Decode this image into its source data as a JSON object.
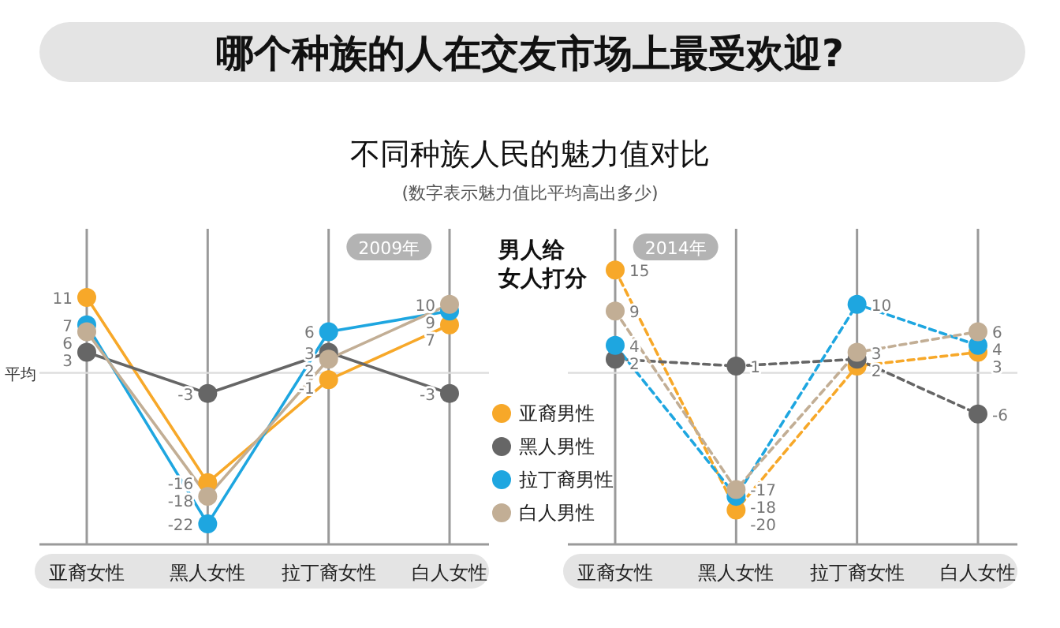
{
  "chart_data": [
    {
      "type": "other",
      "title": "哪个种族的人在交友市场上最受欢迎?",
      "subtitle": "不同种族人民的魅力值对比",
      "annotations": [
        "(数字表示魅力值比平均高出多少)"
      ]
    },
    {
      "type": "line",
      "title": "2009年",
      "categories": [
        "亚裔女性",
        "黑人女性",
        "拉丁裔女性",
        "白人女性"
      ],
      "ylim": [
        -25,
        21
      ],
      "grid": "x",
      "marker": "circle",
      "line_style": "solid",
      "legend": "right",
      "legend_title": "男人给女人打分",
      "ref_lines": [
        {
          "axis": "y",
          "value": 0,
          "label": "平均"
        }
      ],
      "series": [
        {
          "name": "亚裔男性",
          "color": "#f7a829",
          "values": [
            11,
            -16,
            -1,
            7
          ],
          "value_labels": [
            "11",
            "-16",
            "-1",
            "7"
          ]
        },
        {
          "name": "黑人男性",
          "color": "#666666",
          "values": [
            3,
            -3,
            3,
            -3
          ],
          "value_labels": [
            "3",
            "-3",
            "3",
            "-3"
          ]
        },
        {
          "name": "拉丁裔男性",
          "color": "#1ea6e0",
          "values": [
            7,
            -22,
            6,
            9
          ],
          "value_labels": [
            "7",
            "-22",
            "6",
            "9"
          ]
        },
        {
          "name": "白人男性",
          "color": "#c2ae95",
          "values": [
            6,
            -18,
            2,
            10
          ],
          "value_labels": [
            "6",
            "-18",
            "2",
            "10"
          ]
        }
      ]
    },
    {
      "type": "line",
      "title": "2014年",
      "categories": [
        "亚裔女性",
        "黑人女性",
        "拉丁裔女性",
        "白人女性"
      ],
      "ylim": [
        -25,
        21
      ],
      "grid": "x",
      "marker": "circle",
      "line_style": "dashed",
      "ref_lines": [
        {
          "axis": "y",
          "value": 0
        }
      ],
      "series": [
        {
          "color": "#f7a829",
          "values": [
            15,
            -20,
            1,
            3
          ],
          "value_labels": [
            "15",
            "-20",
            null,
            "3"
          ]
        },
        {
          "color": "#666666",
          "values": [
            2,
            1,
            2,
            -6
          ],
          "value_labels": [
            "2",
            "1",
            "2",
            "-6"
          ]
        },
        {
          "color": "#1ea6e0",
          "values": [
            4,
            -18,
            10,
            4
          ],
          "value_labels": [
            "4",
            "-18",
            "10",
            "4"
          ]
        },
        {
          "color": "#c2ae95",
          "values": [
            9,
            -17,
            3,
            6
          ],
          "value_labels": [
            "9",
            "-17",
            "3",
            "6"
          ]
        }
      ]
    }
  ]
}
